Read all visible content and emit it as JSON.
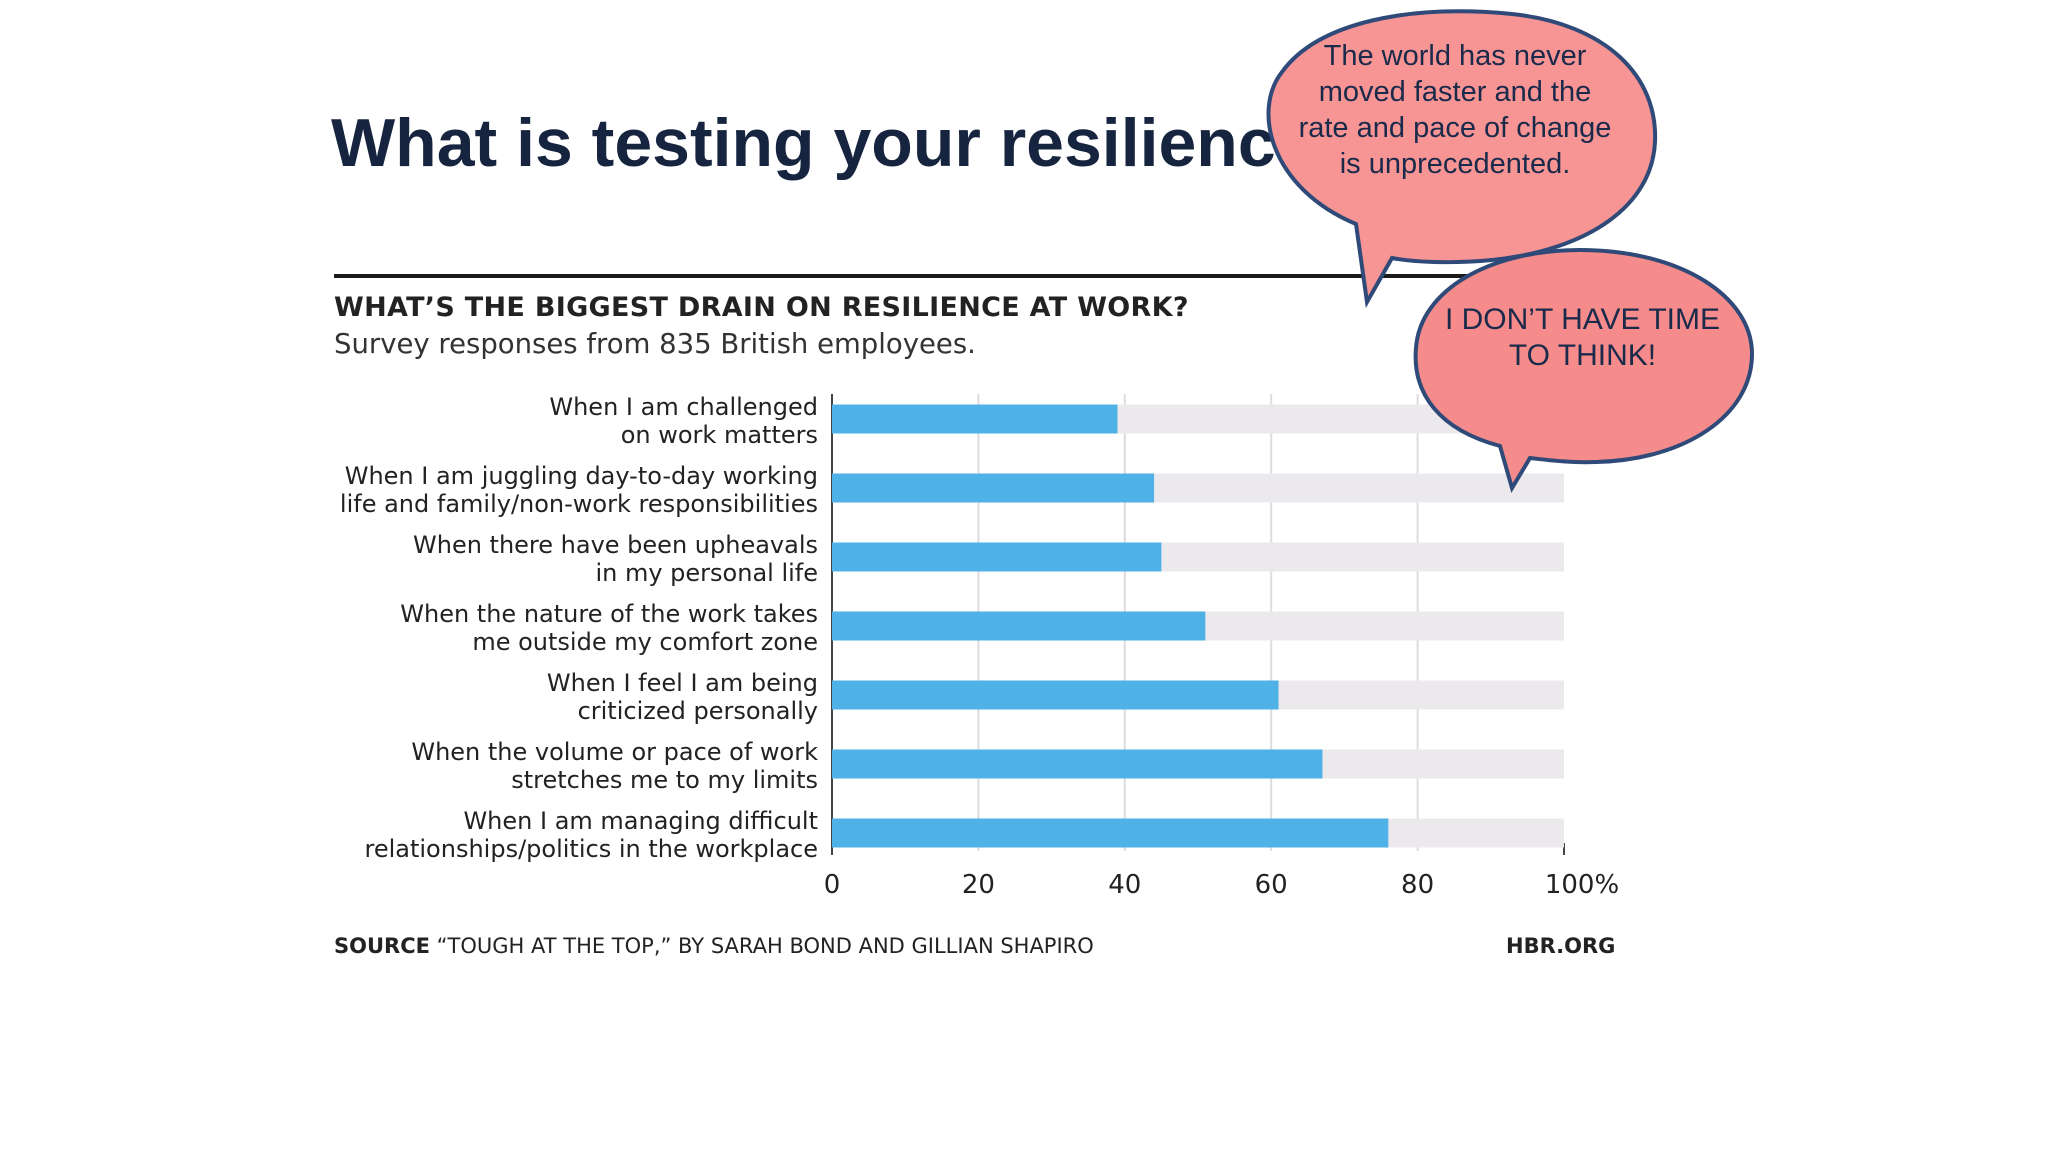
{
  "slide": {
    "title": "What is testing your resilience?"
  },
  "chart": {
    "heading": "WHAT’S THE BIGGEST DRAIN ON RESILIENCE AT WORK?",
    "subtitle": "Survey responses from 835 British employees.",
    "source_label": "SOURCE",
    "source_text": "“TOUGH AT THE TOP,” BY SARAH BOND AND GILLIAN SHAPIRO",
    "site": "HBR.ORG"
  },
  "bubbles": {
    "quote1": "The world has never moved faster and the rate and pace of change is unprecedented.",
    "quote2": "I DON’T HAVE TIME TO THINK!"
  },
  "colors": {
    "bar": "#4fb2e6",
    "track": "#ebe9ec",
    "bubble_fill": "#f79494",
    "bubble_stroke": "#2f4a78",
    "title": "#17243f"
  },
  "chart_data": {
    "type": "bar",
    "orientation": "horizontal",
    "title": "WHAT’S THE BIGGEST DRAIN ON RESILIENCE AT WORK?",
    "subtitle": "Survey responses from 835 British employees.",
    "categories": [
      [
        "When I am challenged",
        "on work matters"
      ],
      [
        "When I am juggling day-to-day working",
        "life and family/non-work responsibilities"
      ],
      [
        "When there have been upheavals",
        "in my personal life"
      ],
      [
        "When the nature of the work takes",
        "me outside my comfort zone"
      ],
      [
        "When I feel I am being",
        "criticized personally"
      ],
      [
        "When the volume or pace of work",
        "stretches me to my limits"
      ],
      [
        "When I am managing difficult",
        "relationships/politics in the workplace"
      ]
    ],
    "values": [
      39,
      44,
      45,
      51,
      61,
      67,
      76
    ],
    "xlim": [
      0,
      100
    ],
    "xticks": [
      "0",
      "20",
      "40",
      "60",
      "80",
      "100%"
    ],
    "grid": true,
    "xlabel": "",
    "ylabel": ""
  }
}
